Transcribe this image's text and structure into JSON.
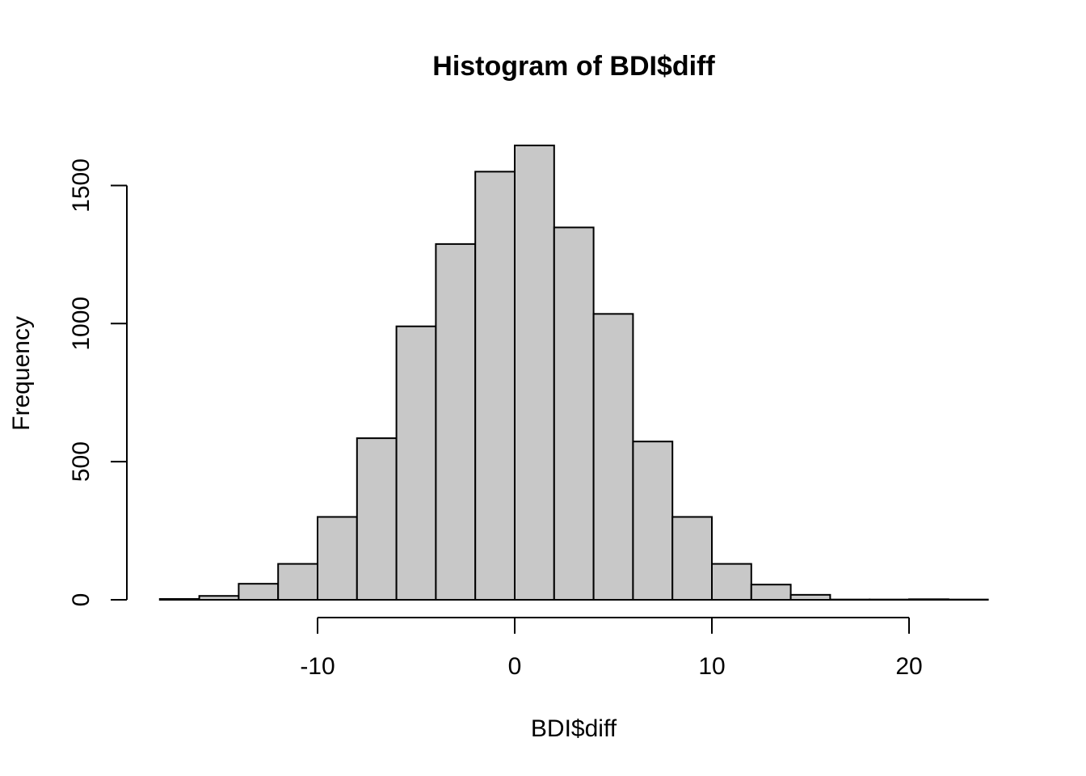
{
  "chart_data": {
    "type": "bar",
    "title": "Histogram of BDI$diff",
    "xlabel": "BDI$diff",
    "ylabel": "Frequency",
    "bin_edges": [
      -18,
      -16,
      -14,
      -12,
      -10,
      -8,
      -6,
      -4,
      -2,
      0,
      2,
      4,
      6,
      8,
      10,
      12,
      14,
      16,
      18,
      20,
      22,
      24
    ],
    "values": [
      3,
      14,
      58,
      130,
      300,
      585,
      990,
      1288,
      1550,
      1645,
      1348,
      1035,
      573,
      300,
      130,
      55,
      18,
      1,
      1,
      2,
      1
    ],
    "x_ticks": [
      -10,
      0,
      10,
      20
    ],
    "x_tick_labels": [
      "-10",
      "0",
      "10",
      "20"
    ],
    "y_ticks": [
      0,
      500,
      1000,
      1500
    ],
    "y_tick_labels": [
      "0",
      "500",
      "1000",
      "1500"
    ],
    "xlim": [
      -18,
      24
    ],
    "ylim": [
      0,
      1645
    ],
    "grid": false,
    "legend": "none"
  }
}
